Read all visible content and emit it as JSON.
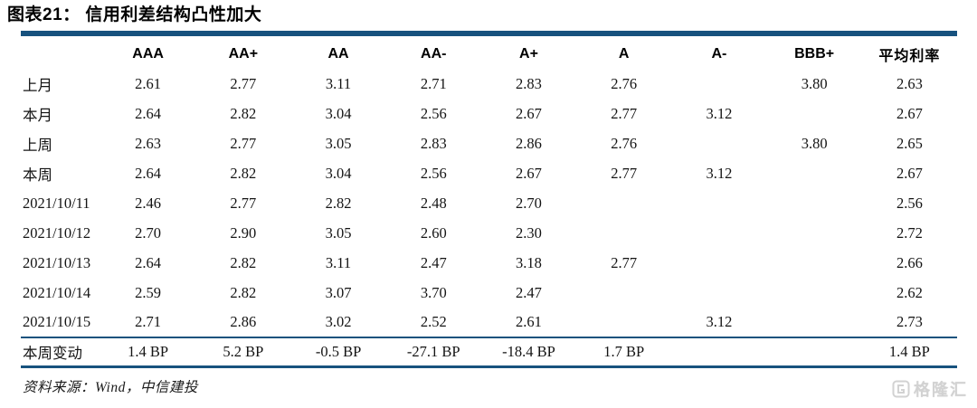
{
  "title": {
    "prefix": "图表21：",
    "text": "信用利差结构凸性加大"
  },
  "table": {
    "columns": [
      "AAA",
      "AA+",
      "AA",
      "AA-",
      "A+",
      "A",
      "A-",
      "BBB+",
      "平均利率"
    ],
    "rows": [
      {
        "label": "上月",
        "values": [
          "2.61",
          "2.77",
          "3.11",
          "2.71",
          "2.83",
          "2.76",
          "",
          "3.80",
          "2.63"
        ]
      },
      {
        "label": "本月",
        "values": [
          "2.64",
          "2.82",
          "3.04",
          "2.56",
          "2.67",
          "2.77",
          "3.12",
          "",
          "2.67"
        ]
      },
      {
        "label": "上周",
        "values": [
          "2.63",
          "2.77",
          "3.05",
          "2.83",
          "2.86",
          "2.76",
          "",
          "3.80",
          "2.65"
        ]
      },
      {
        "label": "本周",
        "values": [
          "2.64",
          "2.82",
          "3.04",
          "2.56",
          "2.67",
          "2.77",
          "3.12",
          "",
          "2.67"
        ]
      },
      {
        "label": "2021/10/11",
        "values": [
          "2.46",
          "2.77",
          "2.82",
          "2.48",
          "2.70",
          "",
          "",
          "",
          "2.56"
        ]
      },
      {
        "label": "2021/10/12",
        "values": [
          "2.70",
          "2.90",
          "3.05",
          "2.60",
          "2.30",
          "",
          "",
          "",
          "2.72"
        ]
      },
      {
        "label": "2021/10/13",
        "values": [
          "2.64",
          "2.82",
          "3.11",
          "2.47",
          "3.18",
          "2.77",
          "",
          "",
          "2.66"
        ]
      },
      {
        "label": "2021/10/14",
        "values": [
          "2.59",
          "2.82",
          "3.07",
          "3.70",
          "2.47",
          "",
          "",
          "",
          "2.62"
        ]
      },
      {
        "label": "2021/10/15",
        "values": [
          "2.71",
          "2.86",
          "3.02",
          "2.52",
          "2.61",
          "",
          "3.12",
          "",
          "2.73"
        ]
      }
    ],
    "change_row": {
      "label": "本周变动",
      "values": [
        "1.4 BP",
        "5.2 BP",
        "-0.5 BP",
        "-27.1 BP",
        "-18.4 BP",
        "1.7 BP",
        "",
        "",
        "1.4 BP"
      ]
    }
  },
  "footer": {
    "source": "资料来源：Wind，中信建投"
  },
  "watermark": {
    "text": "格隆汇"
  },
  "colors": {
    "rule_blue": "#17527e",
    "text": "#141414",
    "watermark_gray": "#d2d2d2"
  }
}
